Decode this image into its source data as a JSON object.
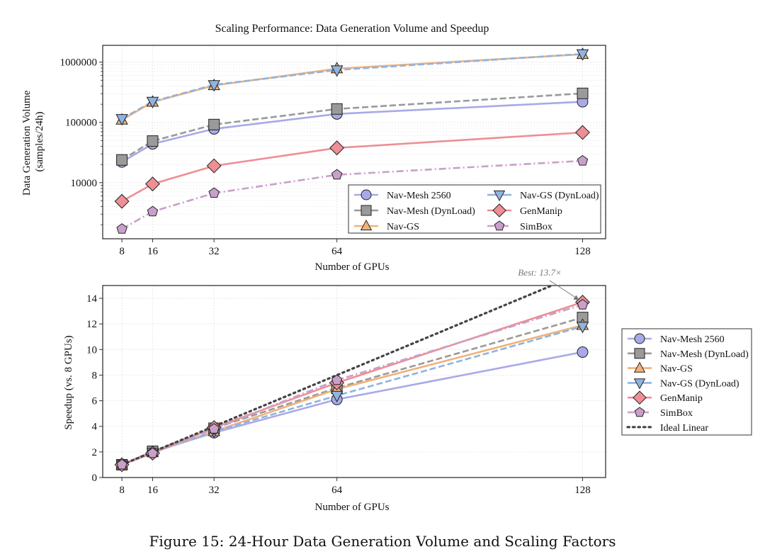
{
  "figure": {
    "suptitle": "Scaling Performance: Data Generation Volume and Speedup",
    "caption": "Figure 15: 24-Hour Data Generation Volume and Scaling Factors"
  },
  "chart_data": [
    {
      "type": "line",
      "title": "Scaling Performance: Data Generation Volume and Speedup",
      "xlabel": "Number of GPUs",
      "ylabel": "Data Generation Volume\n(samples/24h)",
      "ylabel_lines": [
        "Data Generation Volume",
        "(samples/24h)"
      ],
      "yscale": "log",
      "x": [
        8,
        16,
        32,
        64,
        128
      ],
      "xticks": [
        "8",
        "16",
        "32",
        "64",
        "128"
      ],
      "xlim": [
        3,
        134
      ],
      "yticks": [
        10000,
        100000,
        1000000
      ],
      "ytick_labels": [
        "10000",
        "100000",
        "1000000"
      ],
      "ylim": [
        1170,
        1900000
      ],
      "grid": true,
      "legend": {
        "placement": "lower-right",
        "columns": 2
      },
      "series": [
        {
          "name": "Nav-Mesh 2560",
          "marker": "circle",
          "linestyle": "solid",
          "color": "#a9a9e8",
          "values": [
            22000,
            44000,
            78000,
            138000,
            220000
          ]
        },
        {
          "name": "Nav-Mesh (DynLoad)",
          "marker": "square",
          "linestyle": "dashed",
          "color": "#9a9a9a",
          "values": [
            23800,
            49000,
            92000,
            167000,
            303000
          ]
        },
        {
          "name": "Nav-GS",
          "marker": "triangle-up",
          "linestyle": "solid",
          "color": "#f0b27a",
          "values": [
            110000,
            218000,
            410000,
            780000,
            1350000
          ]
        },
        {
          "name": "Nav-GS (DynLoad)",
          "marker": "triangle-down",
          "linestyle": "dashed",
          "color": "#8fb4e0",
          "values": [
            115000,
            222000,
            420000,
            740000,
            1370000
          ]
        },
        {
          "name": "GenManip",
          "marker": "diamond",
          "linestyle": "solid",
          "color": "#ee8e95",
          "values": [
            4900,
            9500,
            19000,
            37700,
            68000
          ]
        },
        {
          "name": "SimBox",
          "marker": "pentagon",
          "linestyle": "dashdot",
          "color": "#c9a0c9",
          "values": [
            1700,
            3300,
            6700,
            13500,
            23000
          ]
        }
      ]
    },
    {
      "type": "line",
      "title": "",
      "xlabel": "Number of GPUs",
      "ylabel": "Speedup (vs. 8 GPUs)",
      "x": [
        8,
        16,
        32,
        64,
        128
      ],
      "xticks": [
        "8",
        "16",
        "32",
        "64",
        "128"
      ],
      "xlim": [
        3,
        134
      ],
      "yticks": [
        0,
        2,
        4,
        6,
        8,
        10,
        12,
        14
      ],
      "ytick_labels": [
        "0",
        "2",
        "4",
        "6",
        "8",
        "10",
        "12",
        "14"
      ],
      "ylim": [
        0,
        15
      ],
      "grid": true,
      "legend": {
        "placement": "outside-right",
        "columns": 1
      },
      "annotation": {
        "text": "Best: 13.7×",
        "x": 128,
        "y": 13.7
      },
      "series": [
        {
          "name": "Nav-Mesh 2560",
          "marker": "circle",
          "linestyle": "solid",
          "color": "#a9a9e8",
          "values": [
            1.0,
            2.0,
            3.5,
            6.1,
            9.8
          ]
        },
        {
          "name": "Nav-Mesh (DynLoad)",
          "marker": "square",
          "linestyle": "dashed",
          "color": "#9a9a9a",
          "values": [
            1.0,
            2.05,
            3.85,
            7.0,
            12.5
          ]
        },
        {
          "name": "Nav-GS",
          "marker": "triangle-up",
          "linestyle": "solid",
          "color": "#f0b27a",
          "values": [
            1.0,
            1.95,
            3.6,
            6.9,
            11.9
          ]
        },
        {
          "name": "Nav-GS (DynLoad)",
          "marker": "triangle-down",
          "linestyle": "dashed",
          "color": "#8fb4e0",
          "values": [
            1.0,
            1.95,
            3.6,
            6.4,
            11.8
          ]
        },
        {
          "name": "GenManip",
          "marker": "diamond",
          "linestyle": "solid",
          "color": "#ee8e95",
          "values": [
            1.0,
            1.9,
            3.9,
            7.4,
            13.7
          ]
        },
        {
          "name": "SimBox",
          "marker": "pentagon",
          "linestyle": "dashdot",
          "color": "#c9a0c9",
          "values": [
            1.0,
            1.9,
            3.8,
            7.6,
            13.5
          ]
        },
        {
          "name": "Ideal Linear",
          "marker": "none",
          "linestyle": "dotted",
          "color": "#444444",
          "values": [
            1,
            2,
            4,
            8,
            16
          ]
        }
      ]
    }
  ]
}
